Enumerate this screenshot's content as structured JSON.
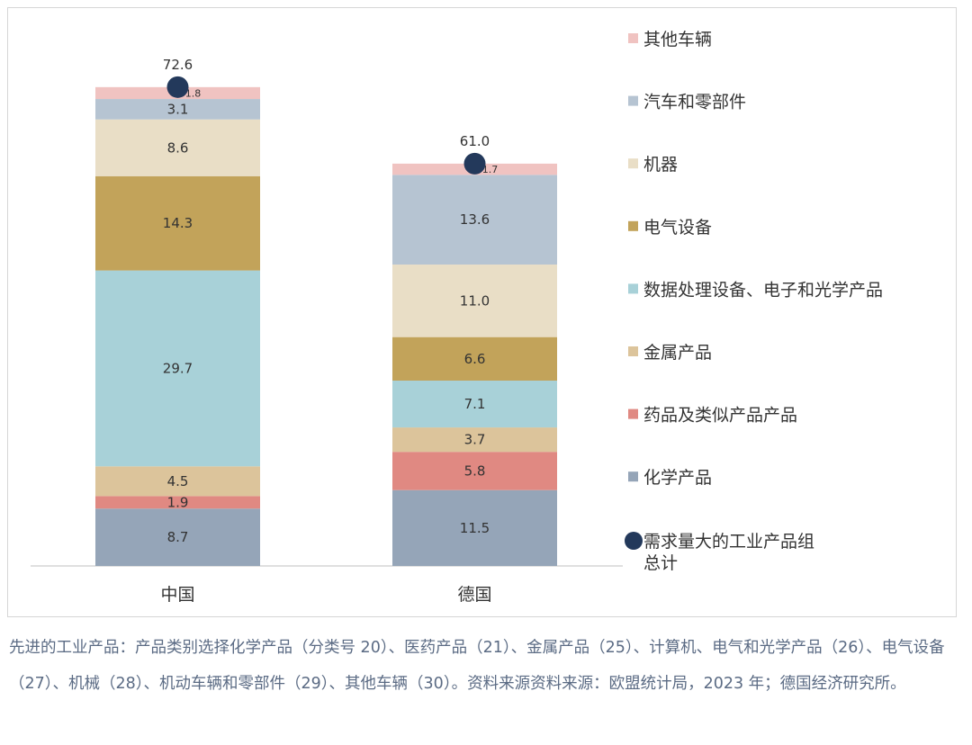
{
  "chart_data": {
    "type": "bar",
    "stacked": true,
    "categories": [
      "中国",
      "德国"
    ],
    "series": [
      {
        "name": "化学产品",
        "color": "#95a5b8",
        "values": [
          8.7,
          11.5
        ]
      },
      {
        "name": "药品及类似产品产品",
        "color": "#e08982",
        "values": [
          1.9,
          5.8
        ]
      },
      {
        "name": "金属产品",
        "color": "#dcc49b",
        "values": [
          4.5,
          3.7
        ]
      },
      {
        "name": "数据处理设备、电子和光学产品",
        "color": "#a8d1d8",
        "values": [
          29.7,
          7.1
        ]
      },
      {
        "name": "电气设备",
        "color": "#c2a35a",
        "values": [
          14.3,
          6.6
        ]
      },
      {
        "name": "机器",
        "color": "#e9dec6",
        "values": [
          8.6,
          11.0
        ]
      },
      {
        "name": "汽车和零部件",
        "color": "#b6c4d2",
        "values": [
          3.1,
          13.6
        ]
      },
      {
        "name": "其他车辆",
        "color": "#f0c3c1",
        "values": [
          1.8,
          1.7
        ]
      }
    ],
    "totals": {
      "name_line1": "需求量大的工业产品组",
      "name_line2": "总计",
      "color": "#23395b",
      "values": [
        72.6,
        61.0
      ],
      "labels": [
        "72.6",
        "61.0"
      ]
    },
    "ylim": [
      0,
      80
    ],
    "legend_position": "right",
    "title": "",
    "xlabel": "",
    "ylabel": ""
  },
  "footnote": "先进的工业产品：产品类别选择化学产品（分类号 20）、医药产品（21）、金属产品（25）、计算机、电气和光学产品（26）、电气设备（27）、机械（28）、机动车辆和零部件（29）、其他车辆（30）。资料来源资料来源：欧盟统计局，2023 年；德国经济研究所。"
}
